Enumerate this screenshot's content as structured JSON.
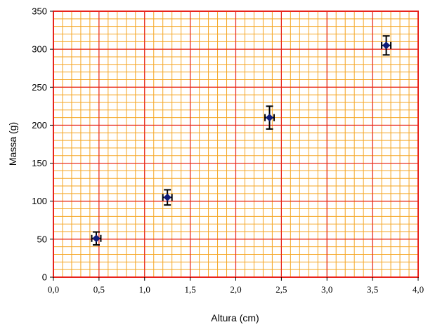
{
  "chart_data": {
    "type": "scatter",
    "title": "",
    "xlabel": "Altura (cm)",
    "ylabel": "Massa (g)",
    "xlim": [
      0,
      4
    ],
    "ylim": [
      0,
      350
    ],
    "x_ticks": [
      0,
      0.5,
      1.0,
      1.5,
      2.0,
      2.5,
      3.0,
      3.5,
      4.0
    ],
    "x_tick_labels": [
      "0,0",
      "0,5",
      "1,0",
      "1,5",
      "2,0",
      "2,5",
      "3,0",
      "3,5",
      "4,0"
    ],
    "y_ticks": [
      0,
      50,
      100,
      150,
      200,
      250,
      300,
      350
    ],
    "y_tick_labels": [
      "0",
      "50",
      "100",
      "150",
      "200",
      "250",
      "300",
      "350"
    ],
    "grid": true,
    "minor_grid": {
      "x_step": 0.1,
      "y_step": 10
    },
    "legend": "none",
    "series": [
      {
        "points": [
          {
            "x": 0.47,
            "y": 51,
            "x_err": 0.05,
            "y_err": 8.5
          },
          {
            "x": 1.25,
            "y": 105,
            "x_err": 0.05,
            "y_err": 10
          },
          {
            "x": 2.37,
            "y": 210,
            "x_err": 0.05,
            "y_err": 15
          },
          {
            "x": 3.65,
            "y": 305,
            "x_err": 0.05,
            "y_err": 12.5
          }
        ]
      }
    ],
    "colors": {
      "major_grid": "#e8231d",
      "minor_grid": "#f5a623",
      "marker": "#0d1b7a",
      "error_bar": "#000000"
    }
  }
}
